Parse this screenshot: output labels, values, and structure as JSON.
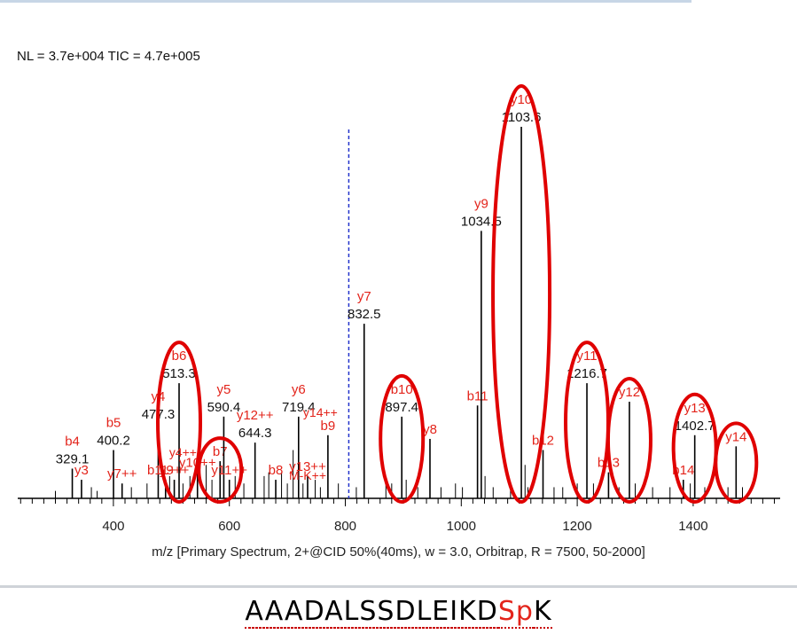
{
  "header": {
    "nl_text": "NL = 3.7e+004 TIC = 4.7e+005"
  },
  "sequence": {
    "prefix": "AAADALSSDLEIKD",
    "modified": "Sp",
    "suffix": "K"
  },
  "colors": {
    "ion_label": "#e3241b",
    "mass_label": "#111111",
    "circle": "#e00000",
    "precursor_line": "#2233cc"
  },
  "chart_data": {
    "type": "scatter",
    "subtype": "mass-spectrum-stick",
    "xlabel": "m/z [Primary Spectrum, 2+@CID 50%(40ms), w = 3.0, Orbitrap, R = 7500, 50-2000]",
    "xlim": [
      235,
      1550
    ],
    "ylim": [
      0,
      100
    ],
    "xticks": [
      400,
      600,
      800,
      1000,
      1200,
      1400
    ],
    "precursor_mz": 806,
    "peaks": [
      {
        "mz": 329.1,
        "intensity": 8,
        "mass_label": "329.1",
        "ion": "b4"
      },
      {
        "mz": 345,
        "intensity": 5,
        "ion": "y3"
      },
      {
        "mz": 400.2,
        "intensity": 13,
        "mass_label": "400.2",
        "ion": "b5"
      },
      {
        "mz": 415,
        "intensity": 4,
        "ion": "y7++"
      },
      {
        "mz": 477.3,
        "intensity": 20,
        "mass_label": "477.3",
        "ion": "y4"
      },
      {
        "mz": 490,
        "intensity": 5,
        "ion": "b11++"
      },
      {
        "mz": 505,
        "intensity": 5,
        "ion": "y9++"
      },
      {
        "mz": 513.3,
        "intensity": 31,
        "mass_label": "513.3",
        "ion": "b6"
      },
      {
        "mz": 545,
        "intensity": 7,
        "ion": "y10++"
      },
      {
        "mz": 584,
        "intensity": 10,
        "ion": "b7"
      },
      {
        "mz": 590.4,
        "intensity": 22,
        "mass_label": "590.4",
        "ion": "y5"
      },
      {
        "mz": 600,
        "intensity": 5,
        "ion": "y11++"
      },
      {
        "mz": 644.3,
        "intensity": 15,
        "mass_label": "644.3",
        "ion": "y12++"
      },
      {
        "mz": 680,
        "intensity": 5,
        "ion": "b8"
      },
      {
        "mz": 719.4,
        "intensity": 22,
        "mass_label": "719.4",
        "ion": "y6"
      },
      {
        "mz": 735,
        "intensity": 6,
        "ion": "y13++"
      },
      {
        "mz": 770,
        "intensity": 17,
        "ion": "b9"
      },
      {
        "mz": 832.5,
        "intensity": 47,
        "mass_label": "832.5",
        "ion": "y7"
      },
      {
        "mz": 897.4,
        "intensity": 22,
        "mass_label": "897.4",
        "ion": "b10"
      },
      {
        "mz": 946,
        "intensity": 16,
        "ion": "y8"
      },
      {
        "mz": 1028,
        "intensity": 25,
        "ion": "b11"
      },
      {
        "mz": 1034.5,
        "intensity": 72,
        "mass_label": "1034.5",
        "ion": "y9"
      },
      {
        "mz": 1103.6,
        "intensity": 100,
        "mass_label": "1103.6",
        "ion": "y10"
      },
      {
        "mz": 1141,
        "intensity": 13,
        "ion": "b12"
      },
      {
        "mz": 1216.7,
        "intensity": 31,
        "mass_label": "1216.7",
        "ion": "y11"
      },
      {
        "mz": 1254,
        "intensity": 7,
        "ion": "b13"
      },
      {
        "mz": 1290,
        "intensity": 26,
        "ion": "y12"
      },
      {
        "mz": 1383,
        "intensity": 5,
        "ion": "b14"
      },
      {
        "mz": 1402.7,
        "intensity": 17,
        "mass_label": "1402.7",
        "ion": "y13"
      },
      {
        "mz": 1474,
        "intensity": 14,
        "ion": "y14"
      }
    ],
    "extra_ion_labels": [
      "y14++",
      "M-K++",
      "y4++"
    ],
    "noise_peaks": [
      {
        "mz": 300,
        "intensity": 2
      },
      {
        "mz": 362,
        "intensity": 3
      },
      {
        "mz": 372,
        "intensity": 2
      },
      {
        "mz": 431,
        "intensity": 3
      },
      {
        "mz": 458,
        "intensity": 4
      },
      {
        "mz": 497,
        "intensity": 6
      },
      {
        "mz": 520,
        "intensity": 4
      },
      {
        "mz": 532,
        "intensity": 6
      },
      {
        "mz": 560,
        "intensity": 9
      },
      {
        "mz": 570,
        "intensity": 5
      },
      {
        "mz": 610,
        "intensity": 6
      },
      {
        "mz": 625,
        "intensity": 4
      },
      {
        "mz": 660,
        "intensity": 6
      },
      {
        "mz": 668,
        "intensity": 7
      },
      {
        "mz": 690,
        "intensity": 7
      },
      {
        "mz": 700,
        "intensity": 4
      },
      {
        "mz": 710,
        "intensity": 13
      },
      {
        "mz": 727,
        "intensity": 4
      },
      {
        "mz": 748,
        "intensity": 5
      },
      {
        "mz": 757,
        "intensity": 3
      },
      {
        "mz": 788,
        "intensity": 4
      },
      {
        "mz": 819,
        "intensity": 3
      },
      {
        "mz": 870,
        "intensity": 4
      },
      {
        "mz": 880,
        "intensity": 4
      },
      {
        "mz": 905,
        "intensity": 5
      },
      {
        "mz": 925,
        "intensity": 3
      },
      {
        "mz": 965,
        "intensity": 3
      },
      {
        "mz": 990,
        "intensity": 4
      },
      {
        "mz": 1002,
        "intensity": 3
      },
      {
        "mz": 1041,
        "intensity": 6
      },
      {
        "mz": 1055,
        "intensity": 3
      },
      {
        "mz": 1085,
        "intensity": 4
      },
      {
        "mz": 1110,
        "intensity": 9
      },
      {
        "mz": 1115,
        "intensity": 3
      },
      {
        "mz": 1160,
        "intensity": 3
      },
      {
        "mz": 1175,
        "intensity": 3
      },
      {
        "mz": 1200,
        "intensity": 4
      },
      {
        "mz": 1228,
        "intensity": 4
      },
      {
        "mz": 1272,
        "intensity": 3
      },
      {
        "mz": 1300,
        "intensity": 4
      },
      {
        "mz": 1330,
        "intensity": 3
      },
      {
        "mz": 1360,
        "intensity": 3
      },
      {
        "mz": 1395,
        "intensity": 4
      },
      {
        "mz": 1420,
        "intensity": 3
      },
      {
        "mz": 1460,
        "intensity": 3
      },
      {
        "mz": 1485,
        "intensity": 3
      }
    ],
    "highlighted_ions": [
      "b6",
      "b7",
      "b10",
      "y10",
      "y11",
      "y12",
      "y13",
      "y14"
    ]
  }
}
